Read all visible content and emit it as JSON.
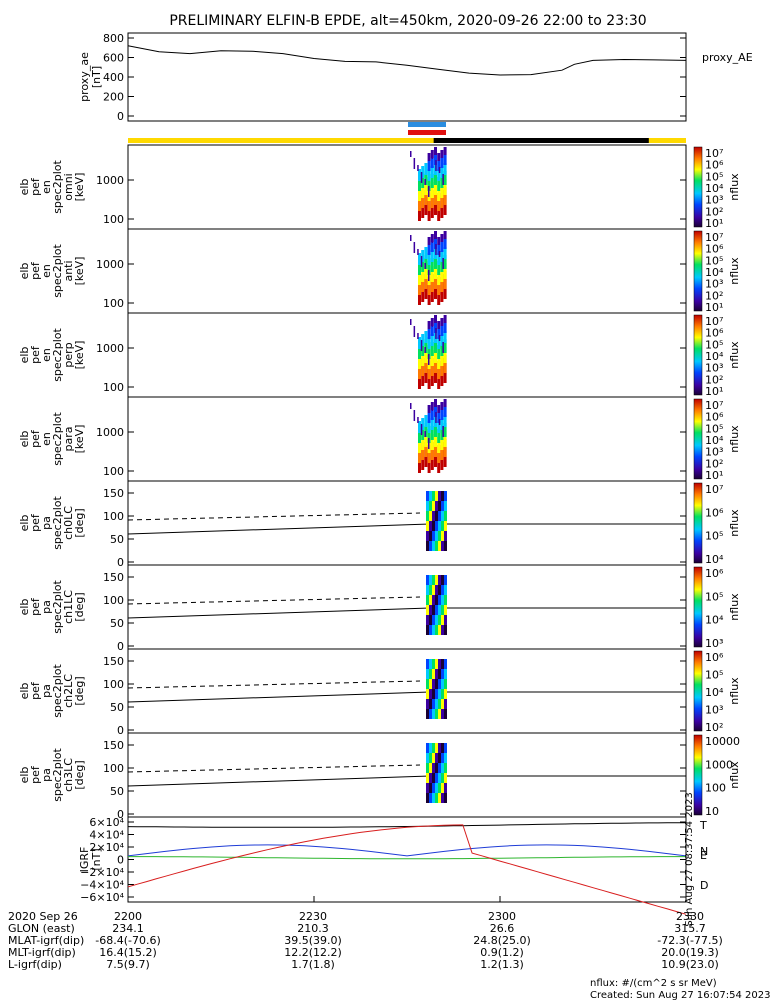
{
  "chart_data": {
    "type": "spectrogram",
    "title": "PRELIMINARY ELFIN-B EPDE, alt=450km, 2020-09-26 22:00 to 23:30",
    "colors": {
      "sat_yellow": "#ffd900",
      "sat_black": "#000000",
      "sci_blue": "#2a8de0",
      "sci_red": "#e01010",
      "trace_black": "#000000",
      "trace_blue": "#1f3cd6",
      "trace_green": "#2db52d",
      "trace_red": "#d81e1e"
    },
    "panels": [
      {
        "id": "proxy_ae",
        "ylabel": [
          "proxy_ae",
          "[nT]"
        ],
        "right_label": "proxy_AE",
        "yticks": [
          "800",
          "600",
          "400",
          "200",
          "0"
        ],
        "x": [
          0,
          5,
          10,
          15,
          20,
          25,
          30,
          35,
          40,
          45,
          50,
          55,
          60,
          65,
          70,
          72,
          75,
          80,
          85,
          90
        ],
        "y": [
          720,
          660,
          640,
          670,
          665,
          640,
          590,
          560,
          555,
          520,
          480,
          440,
          420,
          425,
          470,
          530,
          570,
          580,
          575,
          570
        ],
        "ylim": [
          0,
          800
        ]
      },
      {
        "id": "en_omni",
        "ylabel": [
          "elb",
          "pef",
          "en",
          "spec2plot",
          "omni",
          "[keV]"
        ],
        "yticks": [
          "1000",
          "100"
        ],
        "colorbar": {
          "labels": [
            "10⁷",
            "10⁶",
            "10⁵",
            "10⁴",
            "10³",
            "10²",
            "10¹"
          ],
          "units": "nflux"
        }
      },
      {
        "id": "en_anti",
        "ylabel": [
          "elb",
          "pef",
          "en",
          "spec2plot",
          "anti",
          "[keV]"
        ],
        "yticks": [
          "1000",
          "100"
        ],
        "colorbar": {
          "labels": [
            "10⁷",
            "10⁶",
            "10⁵",
            "10⁴",
            "10³",
            "10²",
            "10¹"
          ],
          "units": "nflux"
        }
      },
      {
        "id": "en_perp",
        "ylabel": [
          "elb",
          "pef",
          "en",
          "spec2plot",
          "perp",
          "[keV]"
        ],
        "yticks": [
          "1000",
          "100"
        ],
        "colorbar": {
          "labels": [
            "10⁷",
            "10⁶",
            "10⁵",
            "10⁴",
            "10³",
            "10²",
            "10¹"
          ],
          "units": "nflux"
        }
      },
      {
        "id": "en_para",
        "ylabel": [
          "elb",
          "pef",
          "en",
          "spec2plot",
          "para",
          "[keV]"
        ],
        "yticks": [
          "1000",
          "100"
        ],
        "colorbar": {
          "labels": [
            "10⁷",
            "10⁶",
            "10⁵",
            "10⁴",
            "10³",
            "10²",
            "10¹"
          ],
          "units": "nflux"
        }
      },
      {
        "id": "pa_ch0",
        "ylabel": [
          "elb",
          "pef",
          "pa",
          "spec2plot",
          "ch0LC",
          "[deg]"
        ],
        "yticks": [
          "150",
          "100",
          "50",
          "0"
        ],
        "colorbar": {
          "labels": [
            "10⁷",
            "10⁶",
            "10⁵",
            "10⁴"
          ],
          "units": "nflux"
        }
      },
      {
        "id": "pa_ch1",
        "ylabel": [
          "elb",
          "pef",
          "pa",
          "spec2plot",
          "ch1LC",
          "[deg]"
        ],
        "yticks": [
          "150",
          "100",
          "50",
          "0"
        ],
        "colorbar": {
          "labels": [
            "10⁶",
            "10⁵",
            "10⁴",
            "10³"
          ],
          "units": "nflux"
        }
      },
      {
        "id": "pa_ch2",
        "ylabel": [
          "elb",
          "pef",
          "pa",
          "spec2plot",
          "ch2LC",
          "[deg]"
        ],
        "yticks": [
          "150",
          "100",
          "50",
          "0"
        ],
        "colorbar": {
          "labels": [
            "10⁶",
            "10⁵",
            "10⁴",
            "10³",
            "10²"
          ],
          "units": "nflux"
        }
      },
      {
        "id": "pa_ch3",
        "ylabel": [
          "elb",
          "pef",
          "pa",
          "spec2plot",
          "ch3LC",
          "[deg]"
        ],
        "yticks": [
          "150",
          "100",
          "50",
          "0"
        ],
        "colorbar": {
          "labels": [
            "10000",
            "1000",
            "100",
            "10"
          ],
          "units": "nflux"
        }
      },
      {
        "id": "igrf",
        "ylabel": [
          "IGRF",
          "[nT]"
        ],
        "yticks": [
          "6×10⁴",
          "4×10⁴",
          "2×10⁴",
          "0",
          "−2×10⁴",
          "−4×10⁴",
          "−6×10⁴"
        ],
        "right_labels": [
          "T",
          "N",
          "E",
          "D"
        ],
        "side_text": "Sun Aug 27 08:37:54 2023"
      }
    ],
    "xaxis": {
      "ticks": [
        "2200",
        "2230",
        "2300",
        "2330"
      ],
      "rows": [
        {
          "label": "2020 Sep 26",
          "values": [
            "2200",
            "2230",
            "2300",
            "2330"
          ]
        },
        {
          "label": "GLON (east)",
          "values": [
            "234.1",
            "210.3",
            "26.6",
            "315.7"
          ]
        },
        {
          "label": "MLAT-igrf(dip)",
          "values": [
            "-68.4(-70.6)",
            "39.5(39.0)",
            "24.8(25.0)",
            "-72.3(-77.5)"
          ]
        },
        {
          "label": "MLT-igrf(dip)",
          "values": [
            "16.4(15.2)",
            "12.2(12.2)",
            "0.9(1.2)",
            "20.0(19.3)"
          ]
        },
        {
          "label": "L-igrf(dip)",
          "values": [
            "7.5(9.7)",
            "1.7(1.8)",
            "1.2(1.3)",
            "10.9(23.0)"
          ]
        }
      ]
    },
    "footer": {
      "units": "nflux: #/(cm^2 s sr MeV)",
      "created": "Created: Sun Aug 27 16:07:54 2023"
    }
  }
}
